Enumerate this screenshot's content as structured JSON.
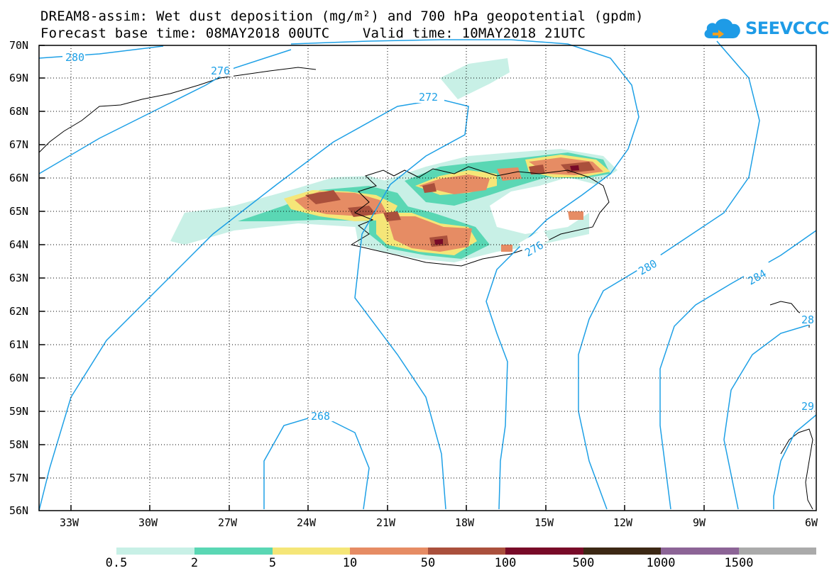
{
  "title_line1": "DREAM8-assim: Wet dust deposition (mg/m²) and 700 hPa geopotential (gpdm)",
  "title_line2": "Forecast base time: 08MAY2018 00UTC    Valid time: 10MAY2018 21UTC",
  "logo_text": "SEEVCCC",
  "lat_labels": [
    "70N",
    "69N",
    "68N",
    "67N",
    "66N",
    "65N",
    "64N",
    "63N",
    "62N",
    "61N",
    "60N",
    "59N",
    "58N",
    "57N",
    "56N"
  ],
  "lon_labels": [
    "33W",
    "30W",
    "27W",
    "24W",
    "21W",
    "18W",
    "15W",
    "12W",
    "9W",
    "6W"
  ],
  "contour_labels": [
    "280",
    "276",
    "272",
    "276",
    "280",
    "284",
    "28",
    "268",
    "29"
  ],
  "colorbar": {
    "colors": [
      "#c8f0e6",
      "#5ad7b4",
      "#f5e678",
      "#e68c64",
      "#aa503c",
      "#780a28",
      "#3c2814",
      "#8c6496",
      "#aaaaaa"
    ],
    "labels": [
      "0.5",
      "2",
      "5",
      "10",
      "50",
      "100",
      "500",
      "1000",
      "1500"
    ]
  },
  "colors": {
    "contour": "#1ea0e6",
    "logo": "#1e9be6"
  }
}
